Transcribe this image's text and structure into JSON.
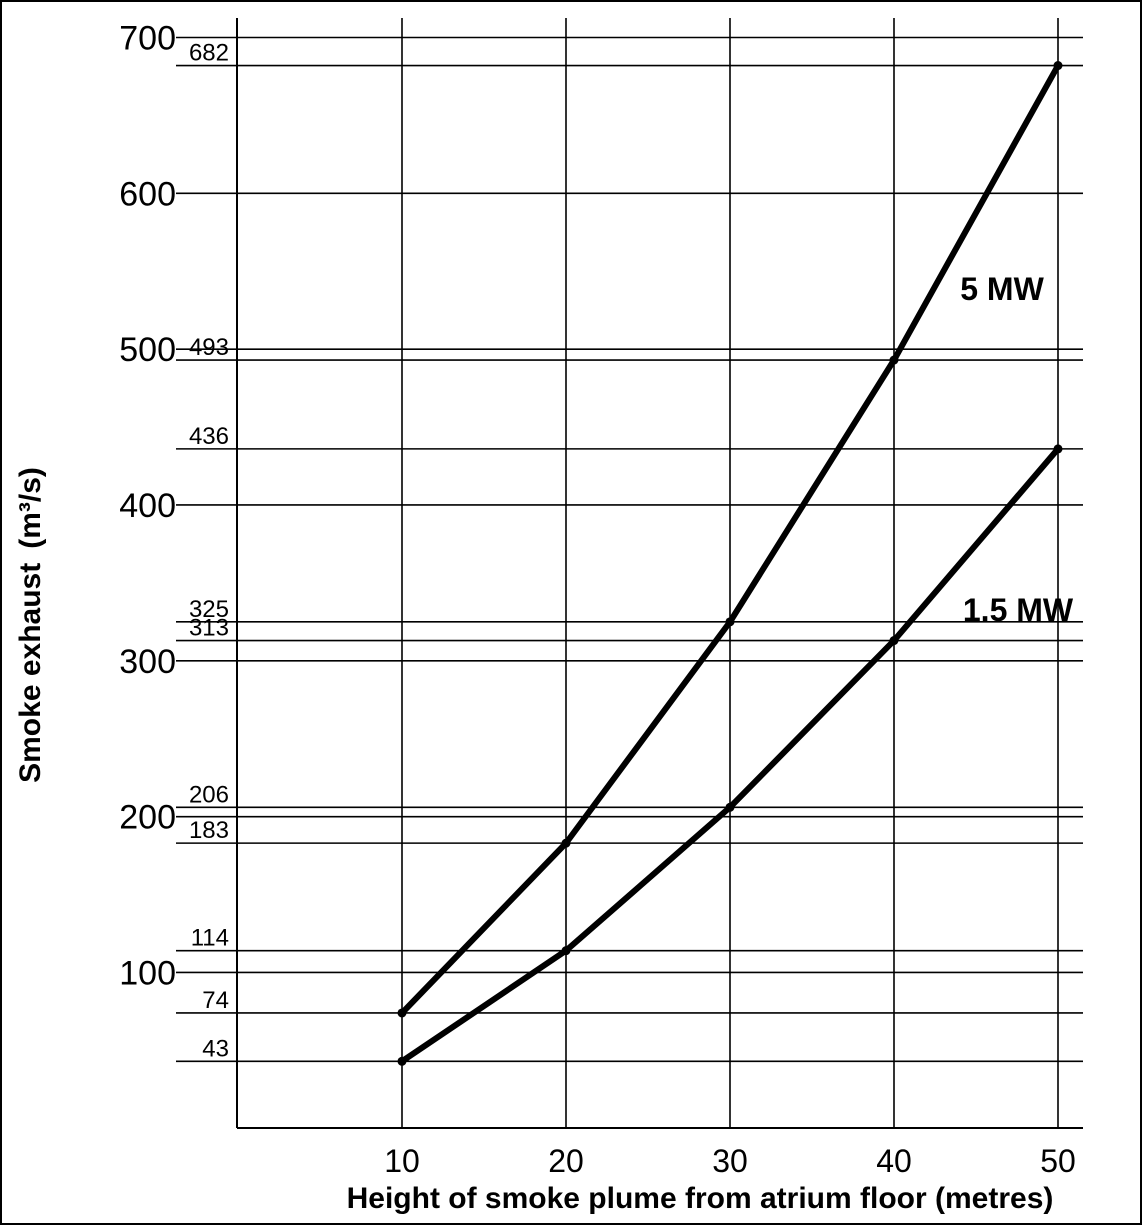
{
  "chart_data": {
    "type": "line",
    "xlabel": "Height of smoke plume from atrium floor (metres)",
    "ylabel": "Smoke exhaust",
    "ylabel_unit": "(m³/s)",
    "xlim": [
      0,
      51
    ],
    "ylim": [
      0,
      720
    ],
    "x_ticks": [
      "10",
      "20",
      "30",
      "40",
      "50"
    ],
    "x": [
      10,
      20,
      30,
      40,
      50
    ],
    "y_major_ticks": [
      "100",
      "200",
      "300",
      "400",
      "500",
      "600",
      "700"
    ],
    "y_value_ticks": [
      "43",
      "74",
      "114",
      "183",
      "206",
      "313",
      "325",
      "436",
      "493",
      "682"
    ],
    "grid": true,
    "series": [
      {
        "name": "5 MW",
        "values": [
          74,
          183,
          325,
          493,
          682
        ]
      },
      {
        "name": "1.5 MW",
        "values": [
          43,
          114,
          206,
          313,
          436
        ]
      }
    ]
  }
}
